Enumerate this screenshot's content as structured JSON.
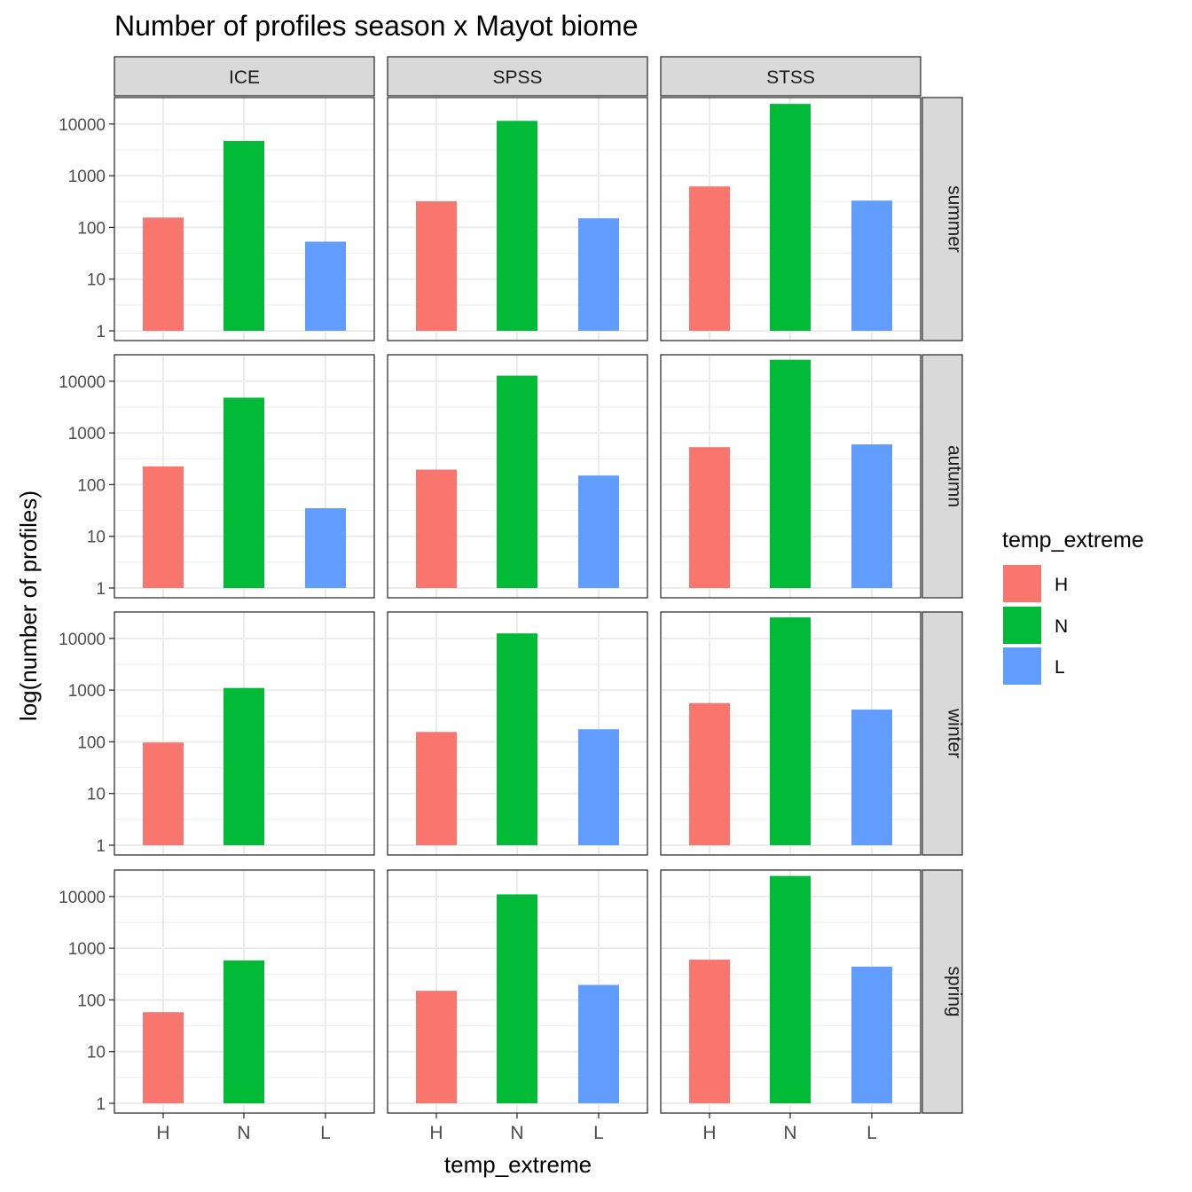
{
  "chart_data": {
    "type": "bar",
    "title": "Number of profiles season x Mayot biome",
    "xlabel": "temp_extreme",
    "ylabel": "log(number of profiles)",
    "y_scale": "log10",
    "ylim": [
      1,
      30000
    ],
    "y_ticks": [
      "1",
      "10",
      "100",
      "1000",
      "10000"
    ],
    "grid": true,
    "facet_columns": [
      "ICE",
      "SPSS",
      "STSS"
    ],
    "facet_rows": [
      "summer",
      "autumn",
      "winter",
      "spring"
    ],
    "categories": [
      "H",
      "N",
      "L"
    ],
    "legend": {
      "title": "temp_extreme",
      "position": "right",
      "entries": [
        {
          "label": "H",
          "color": "#F8766D"
        },
        {
          "label": "N",
          "color": "#00BA38"
        },
        {
          "label": "L",
          "color": "#619CFF"
        }
      ]
    },
    "panels": [
      {
        "row": "summer",
        "col": "ICE",
        "values": {
          "H": 155,
          "N": 4700,
          "L": 53
        }
      },
      {
        "row": "summer",
        "col": "SPSS",
        "values": {
          "H": 320,
          "N": 11500,
          "L": 150
        }
      },
      {
        "row": "summer",
        "col": "STSS",
        "values": {
          "H": 620,
          "N": 24500,
          "L": 330
        }
      },
      {
        "row": "autumn",
        "col": "ICE",
        "values": {
          "H": 225,
          "N": 4800,
          "L": 35
        }
      },
      {
        "row": "autumn",
        "col": "SPSS",
        "values": {
          "H": 195,
          "N": 12800,
          "L": 150
        }
      },
      {
        "row": "autumn",
        "col": "STSS",
        "values": {
          "H": 530,
          "N": 26000,
          "L": 600
        }
      },
      {
        "row": "winter",
        "col": "ICE",
        "values": {
          "H": 97,
          "N": 1100,
          "L": null
        }
      },
      {
        "row": "winter",
        "col": "SPSS",
        "values": {
          "H": 155,
          "N": 12500,
          "L": 175
        }
      },
      {
        "row": "winter",
        "col": "STSS",
        "values": {
          "H": 560,
          "N": 25500,
          "L": 420
        }
      },
      {
        "row": "spring",
        "col": "ICE",
        "values": {
          "H": 58,
          "N": 580,
          "L": null
        }
      },
      {
        "row": "spring",
        "col": "SPSS",
        "values": {
          "H": 150,
          "N": 11000,
          "L": 195
        }
      },
      {
        "row": "spring",
        "col": "STSS",
        "values": {
          "H": 600,
          "N": 25000,
          "L": 440
        }
      }
    ]
  }
}
